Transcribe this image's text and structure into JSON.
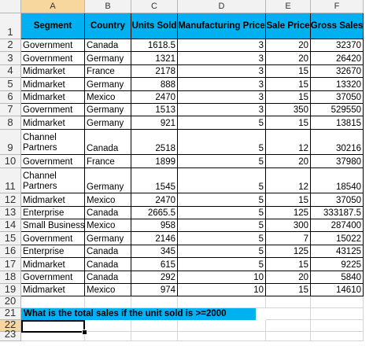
{
  "columns": [
    "A",
    "B",
    "C",
    "D",
    "E",
    "F"
  ],
  "headers": [
    "Segment",
    "Country",
    "Units Sold",
    "Manufacturing Price",
    "Sale Price",
    "Gross Sales"
  ],
  "rows": [
    {
      "num": "2",
      "cells": [
        "Government",
        "Canada",
        "1618.5",
        "3",
        "20",
        "32370"
      ]
    },
    {
      "num": "3",
      "cells": [
        "Government",
        "Germany",
        "1321",
        "3",
        "20",
        "26420"
      ]
    },
    {
      "num": "4",
      "cells": [
        "Midmarket",
        "France",
        "2178",
        "3",
        "15",
        "32670"
      ]
    },
    {
      "num": "5",
      "cells": [
        "Midmarket",
        "Germany",
        "888",
        "3",
        "15",
        "13320"
      ]
    },
    {
      "num": "6",
      "cells": [
        "Midmarket",
        "Mexico",
        "2470",
        "3",
        "15",
        "37050"
      ]
    },
    {
      "num": "7",
      "cells": [
        "Government",
        "Germany",
        "1513",
        "3",
        "350",
        "529550"
      ]
    },
    {
      "num": "8",
      "cells": [
        "Midmarket",
        "Germany",
        "921",
        "5",
        "15",
        "13815"
      ]
    },
    {
      "num": "9",
      "cells": [
        "Channel Partners",
        "Canada",
        "2518",
        "5",
        "12",
        "30216"
      ]
    },
    {
      "num": "10",
      "cells": [
        "Government",
        "France",
        "1899",
        "5",
        "20",
        "37980"
      ]
    },
    {
      "num": "11",
      "cells": [
        "Channel Partners",
        "Germany",
        "1545",
        "5",
        "12",
        "18540"
      ]
    },
    {
      "num": "12",
      "cells": [
        "Midmarket",
        "Mexico",
        "2470",
        "5",
        "15",
        "37050"
      ]
    },
    {
      "num": "13",
      "cells": [
        "Enterprise",
        "Canada",
        "2665.5",
        "5",
        "125",
        "333187.5"
      ]
    },
    {
      "num": "14",
      "cells": [
        "Small Business",
        "Mexico",
        "958",
        "5",
        "300",
        "287400"
      ]
    },
    {
      "num": "15",
      "cells": [
        "Government",
        "Germany",
        "2146",
        "5",
        "7",
        "15022"
      ]
    },
    {
      "num": "16",
      "cells": [
        "Enterprise",
        "Canada",
        "345",
        "5",
        "125",
        "43125"
      ]
    },
    {
      "num": "17",
      "cells": [
        "Midmarket",
        "Canada",
        "615",
        "5",
        "15",
        "9225"
      ]
    },
    {
      "num": "18",
      "cells": [
        "Government",
        "Canada",
        "292",
        "10",
        "20",
        "5840"
      ]
    },
    {
      "num": "19",
      "cells": [
        "Midmarket",
        "Mexico",
        "974",
        "10",
        "15",
        "14610"
      ]
    }
  ],
  "header_row_num": "1",
  "question_row_num": "21",
  "question_text": "What is the total sales if the unit sold is >=2000",
  "active_row_num": "22",
  "last_row_num": "23",
  "colors": {
    "header_fill": "#00b0f0",
    "selection_header": "#f8d79e"
  }
}
